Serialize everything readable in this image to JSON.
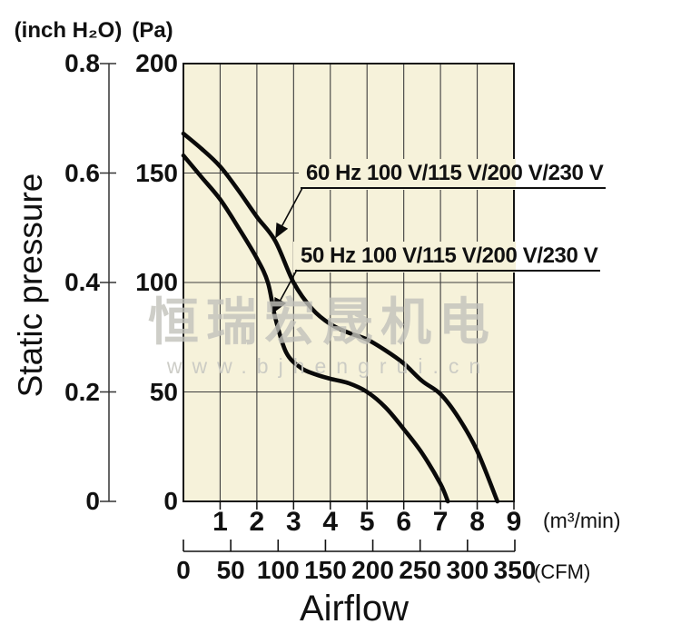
{
  "labels": {
    "pressure_unit_inch": "(inch H₂O)",
    "pressure_unit_pa": "(Pa)",
    "y_axis_title": "Static pressure",
    "x_axis_title": "Airflow",
    "flow_unit_metric": "(m³/min)",
    "flow_unit_cfm": "(CFM)"
  },
  "watermark": {
    "cn_text": "恒瑞宏晟机电",
    "url_text": "www.bjhengrui.cn"
  },
  "chart_data": {
    "type": "line",
    "title": "",
    "xlabel": "Airflow",
    "ylabel": "Static pressure",
    "grid": "on",
    "x_axis": {
      "unit": "m³/min",
      "range": [
        0,
        9
      ],
      "tick_labels": [
        "1",
        "2",
        "3",
        "4",
        "5",
        "6",
        "7",
        "8",
        "9"
      ],
      "tick_values": [
        1,
        2,
        3,
        4,
        5,
        6,
        7,
        8,
        9
      ]
    },
    "x_axis_secondary": {
      "unit": "CFM",
      "range": [
        0,
        350
      ],
      "tick_labels": [
        "0",
        "50",
        "100",
        "150",
        "200",
        "250",
        "300",
        "350"
      ],
      "tick_values": [
        0,
        50,
        100,
        150,
        200,
        250,
        300,
        350
      ]
    },
    "y_axis": {
      "unit": "Pa",
      "range": [
        0,
        200
      ],
      "tick_labels": [
        "200",
        "150",
        "100",
        "50",
        "0"
      ],
      "tick_values": [
        200,
        150,
        100,
        50,
        0
      ],
      "gridline_values": [
        50,
        100,
        150
      ]
    },
    "y_axis_secondary": {
      "unit": "inch H₂O",
      "range": [
        0,
        0.8
      ],
      "tick_labels": [
        "0.8",
        "0.6",
        "0.4",
        "0.2",
        "0"
      ],
      "tick_values": [
        0.8,
        0.6,
        0.4,
        0.2,
        0
      ]
    },
    "series": [
      {
        "name": "60 Hz 100 V/115 V/200 V/230 V",
        "points": [
          [
            0,
            168
          ],
          [
            0.5,
            161
          ],
          [
            1,
            153
          ],
          [
            1.5,
            142
          ],
          [
            2,
            130
          ],
          [
            2.5,
            119
          ],
          [
            3,
            100
          ],
          [
            3.5,
            88
          ],
          [
            4,
            81
          ],
          [
            4.5,
            77
          ],
          [
            5,
            74
          ],
          [
            5.5,
            69
          ],
          [
            6,
            63
          ],
          [
            6.5,
            55
          ],
          [
            7,
            49
          ],
          [
            7.5,
            38
          ],
          [
            8,
            23
          ],
          [
            8.55,
            0
          ]
        ]
      },
      {
        "name": "50 Hz 100 V/115 V/200 V/230 V",
        "points": [
          [
            0,
            158
          ],
          [
            0.5,
            148
          ],
          [
            1,
            138
          ],
          [
            1.5,
            125
          ],
          [
            2,
            111
          ],
          [
            2.3,
            100
          ],
          [
            2.5,
            84
          ],
          [
            2.8,
            68
          ],
          [
            3.2,
            61
          ],
          [
            3.6,
            58
          ],
          [
            4,
            56
          ],
          [
            4.5,
            54
          ],
          [
            5,
            50
          ],
          [
            5.5,
            43
          ],
          [
            6,
            33
          ],
          [
            6.5,
            22
          ],
          [
            7,
            8
          ],
          [
            7.2,
            0
          ]
        ]
      }
    ]
  }
}
